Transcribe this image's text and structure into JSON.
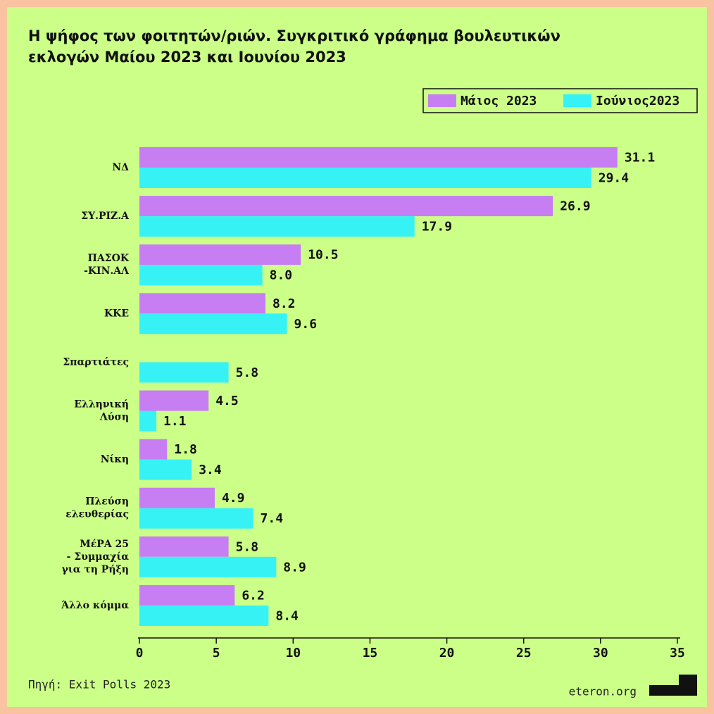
{
  "chart_data": {
    "type": "bar",
    "orientation": "horizontal",
    "title": "Η ψήφος των φοιτητών/ριών. Συγκριτικό γράφημα βουλευτικών\nεκλογών Μαίου 2023 και Ιουνίου 2023",
    "categories": [
      "ΝΔ",
      "ΣΥ.ΡΙΖ.Α",
      "ΠΑΣΟΚ\n-ΚΙΝ.ΑΛ",
      "ΚΚΕ",
      "Σπαρτιάτες",
      "Ελληνική\nΛύση",
      "Νίκη",
      "Πλεύση\nελευθερίας",
      "ΜέΡΑ 25\n- Συμμαχία\nγια τη Ρήξη",
      "Άλλο κόμμα"
    ],
    "series": [
      {
        "name": "Μάιος 2023",
        "color": "#c77ef2",
        "values": [
          31.1,
          26.9,
          10.5,
          8.2,
          null,
          4.5,
          1.8,
          4.9,
          5.8,
          6.2
        ],
        "value_labels": [
          "31.1",
          "26.9",
          "10.5",
          "8.2",
          null,
          "4.5",
          "1.8",
          "4.9",
          "5.8",
          "6.2"
        ]
      },
      {
        "name": "Ιούνιος2023",
        "color": "#36f2f5",
        "values": [
          29.4,
          17.9,
          8,
          9.6,
          5.8,
          1.1,
          3.4,
          7.4,
          8.9,
          8.4
        ],
        "value_labels": [
          "29.4",
          "17.9",
          "8.0",
          "9.6",
          "5.8",
          "1.1",
          "3.4",
          "7.4",
          "8.9",
          "8.4"
        ]
      }
    ],
    "xlim": [
      0,
      35
    ],
    "xticks": [
      0,
      5,
      10,
      15,
      20,
      25,
      30,
      35
    ],
    "legend": "top-right",
    "source": "Πηγή: Exit Polls 2023",
    "brand": "eteron.org"
  }
}
